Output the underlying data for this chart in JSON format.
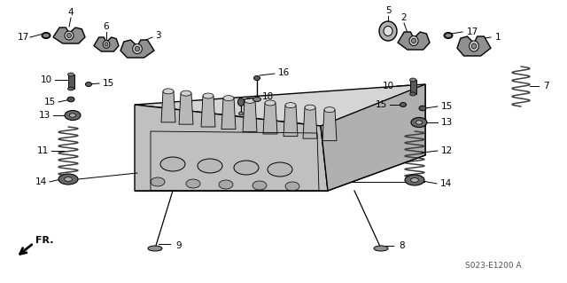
{
  "bg_color": "#ffffff",
  "lc": "#000000",
  "gray1": "#c8c8c8",
  "gray2": "#a0a0a0",
  "gray3": "#707070",
  "gray4": "#505050",
  "part_code": "S023-E1200 A",
  "figsize": [
    6.4,
    3.19
  ],
  "dpi": 100
}
